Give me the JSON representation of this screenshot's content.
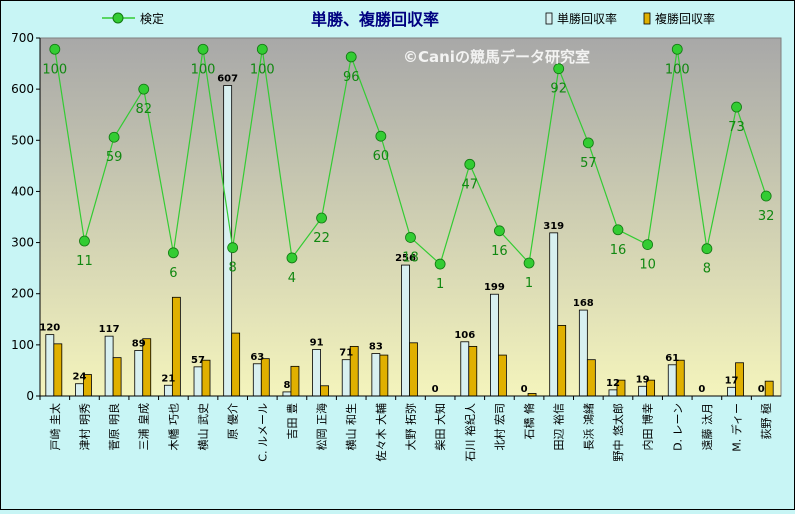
{
  "colors": {
    "background": "#c8f5f5",
    "plot_top": "#a8a8a8",
    "plot_bottom": "#f4f4bc",
    "tanshou_bar": "#d8f0f0",
    "fukushou_bar": "#e0b000",
    "kentei_line": "#33cc33",
    "kentei_label": "#118811",
    "title": "#000080",
    "watermark": "#ffffff"
  },
  "chart_data": {
    "type": "bar",
    "title": "単勝、複勝回収率",
    "watermark": "©Caniの競馬データ研究室",
    "ylim": [
      0,
      700
    ],
    "yticks": [
      "0",
      "100",
      "200",
      "300",
      "400",
      "500",
      "600",
      "700"
    ],
    "grid": false,
    "legend_placement": "top",
    "categories": [
      "戸崎 圭太",
      "津村 明秀",
      "菅原 明良",
      "三浦 皇成",
      "木幡 巧也",
      "横山 武史",
      "原 優介",
      "C. ルメール",
      "吉田 豊",
      "松岡 正海",
      "横山 和生",
      "佐々木 大輔",
      "大野 拓弥",
      "柴田 大知",
      "石川 裕紀人",
      "北村 宏司",
      "石橋 脩",
      "田辺 裕信",
      "長浜 鴻緒",
      "野中 悠太郎",
      "内田 博幸",
      "D. レーン",
      "遠藤 汰月",
      "M. ディー",
      "荻野 極"
    ],
    "series": [
      {
        "name": "単勝回収率",
        "values": [
          120,
          24,
          117,
          89,
          21,
          57,
          607,
          63,
          8,
          91,
          71,
          83,
          256,
          0,
          106,
          199,
          0,
          319,
          168,
          12,
          19,
          61,
          0,
          17,
          0
        ],
        "labels": [
          "120",
          "24",
          "117",
          "89",
          "21",
          "57",
          "607",
          "63",
          "8",
          "91",
          "71",
          "83",
          "256",
          "0",
          "106",
          "199",
          "0",
          "319",
          "168",
          "12",
          "19",
          "61",
          "0",
          "17",
          "0"
        ]
      },
      {
        "name": "複勝回収率",
        "values": [
          102,
          42,
          75,
          112,
          193,
          70,
          123,
          73,
          58,
          20,
          97,
          80,
          104,
          0,
          97,
          80,
          5,
          138,
          71,
          31,
          31,
          70,
          0,
          65,
          29
        ]
      },
      {
        "name": "検定",
        "type": "line",
        "values": [
          678,
          303,
          506,
          600,
          280,
          678,
          290,
          678,
          270,
          348,
          663,
          508,
          310,
          258,
          453,
          323,
          260,
          640,
          495,
          325,
          296,
          678,
          288,
          565,
          391
        ],
        "labels": [
          "100",
          "11",
          "59",
          "82",
          "6",
          "100",
          "8",
          "100",
          "4",
          "22",
          "96",
          "60",
          "18",
          "1",
          "47",
          "16",
          "1",
          "92",
          "57",
          "16",
          "10",
          "100",
          "8",
          "73",
          "32"
        ]
      }
    ]
  }
}
